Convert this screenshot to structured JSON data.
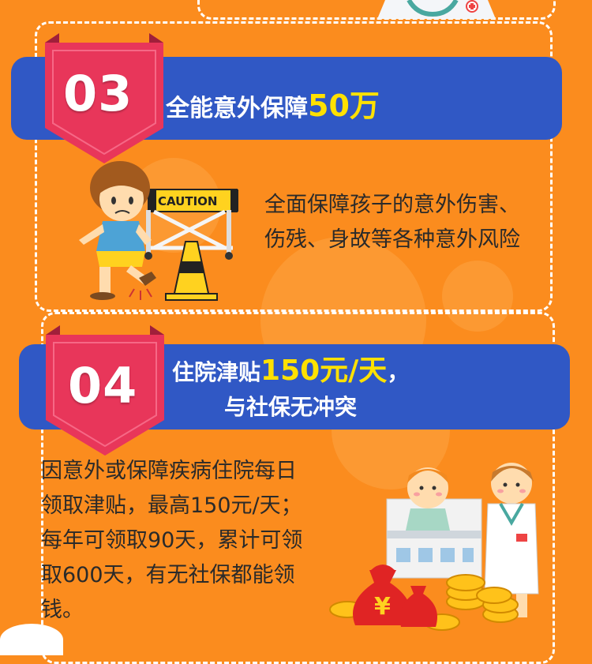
{
  "section3": {
    "number": "03",
    "title_prefix": "全能意外保障",
    "title_highlight": "50万",
    "desc_line1": "全面保障孩子的意外伤害、",
    "desc_line2": "伤残、身故等各种意外风险",
    "caution_label": "CAUTION"
  },
  "section4": {
    "number": "04",
    "title_prefix": "住院津贴",
    "title_highlight": "150元/天",
    "title_suffix": "，",
    "title_line2": "与社保无冲突",
    "desc_lines": [
      "因意外或保障疾病住院每日",
      "领取津贴，最高150元/天；",
      "每年可领取90天，累计可领",
      "取600天，有无社保都能领",
      "钱。"
    ],
    "money_symbol": "¥"
  },
  "colors": {
    "background": "#fb8c1e",
    "banner": "#3058c5",
    "ribbon": "#e8365a",
    "highlight": "#ffe100"
  }
}
